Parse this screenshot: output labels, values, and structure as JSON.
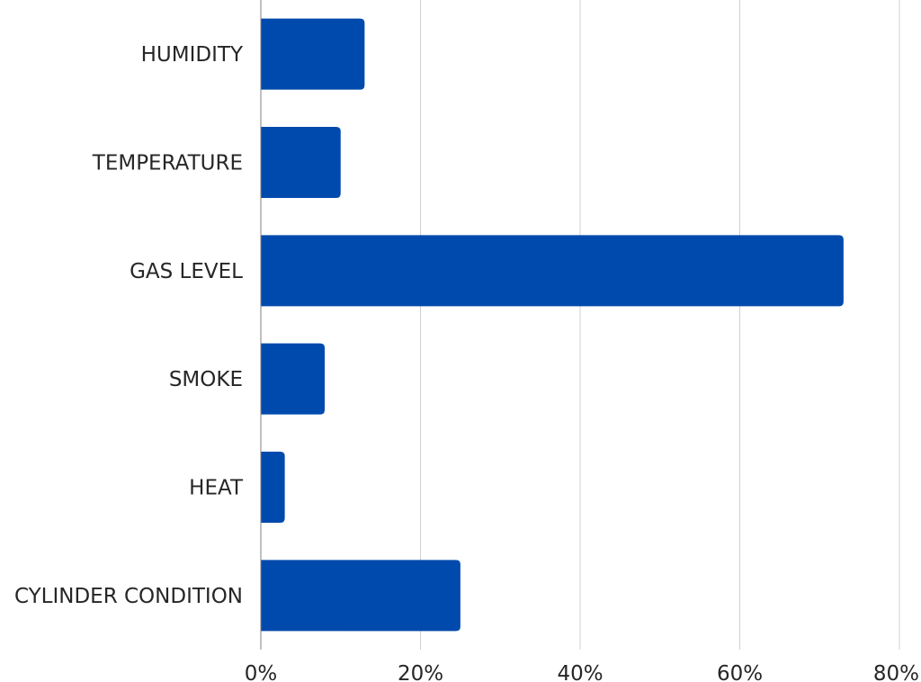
{
  "chart_data": {
    "type": "bar",
    "orientation": "horizontal",
    "categories": [
      "HUMIDITY",
      "TEMPERATURE",
      "GAS LEVEL",
      "SMOKE",
      "HEAT",
      "CYLINDER CONDITION"
    ],
    "values": [
      13,
      10,
      73,
      8,
      3,
      25
    ],
    "value_unit": "%",
    "xlim": [
      0,
      80
    ],
    "xticks": [
      0,
      20,
      40,
      60,
      80
    ],
    "xtick_labels": [
      "0%",
      "20%",
      "40%",
      "60%",
      "80%"
    ],
    "grid": true,
    "legend": "none",
    "bar_color": "#004aad",
    "title": "",
    "xlabel": "",
    "ylabel": ""
  }
}
